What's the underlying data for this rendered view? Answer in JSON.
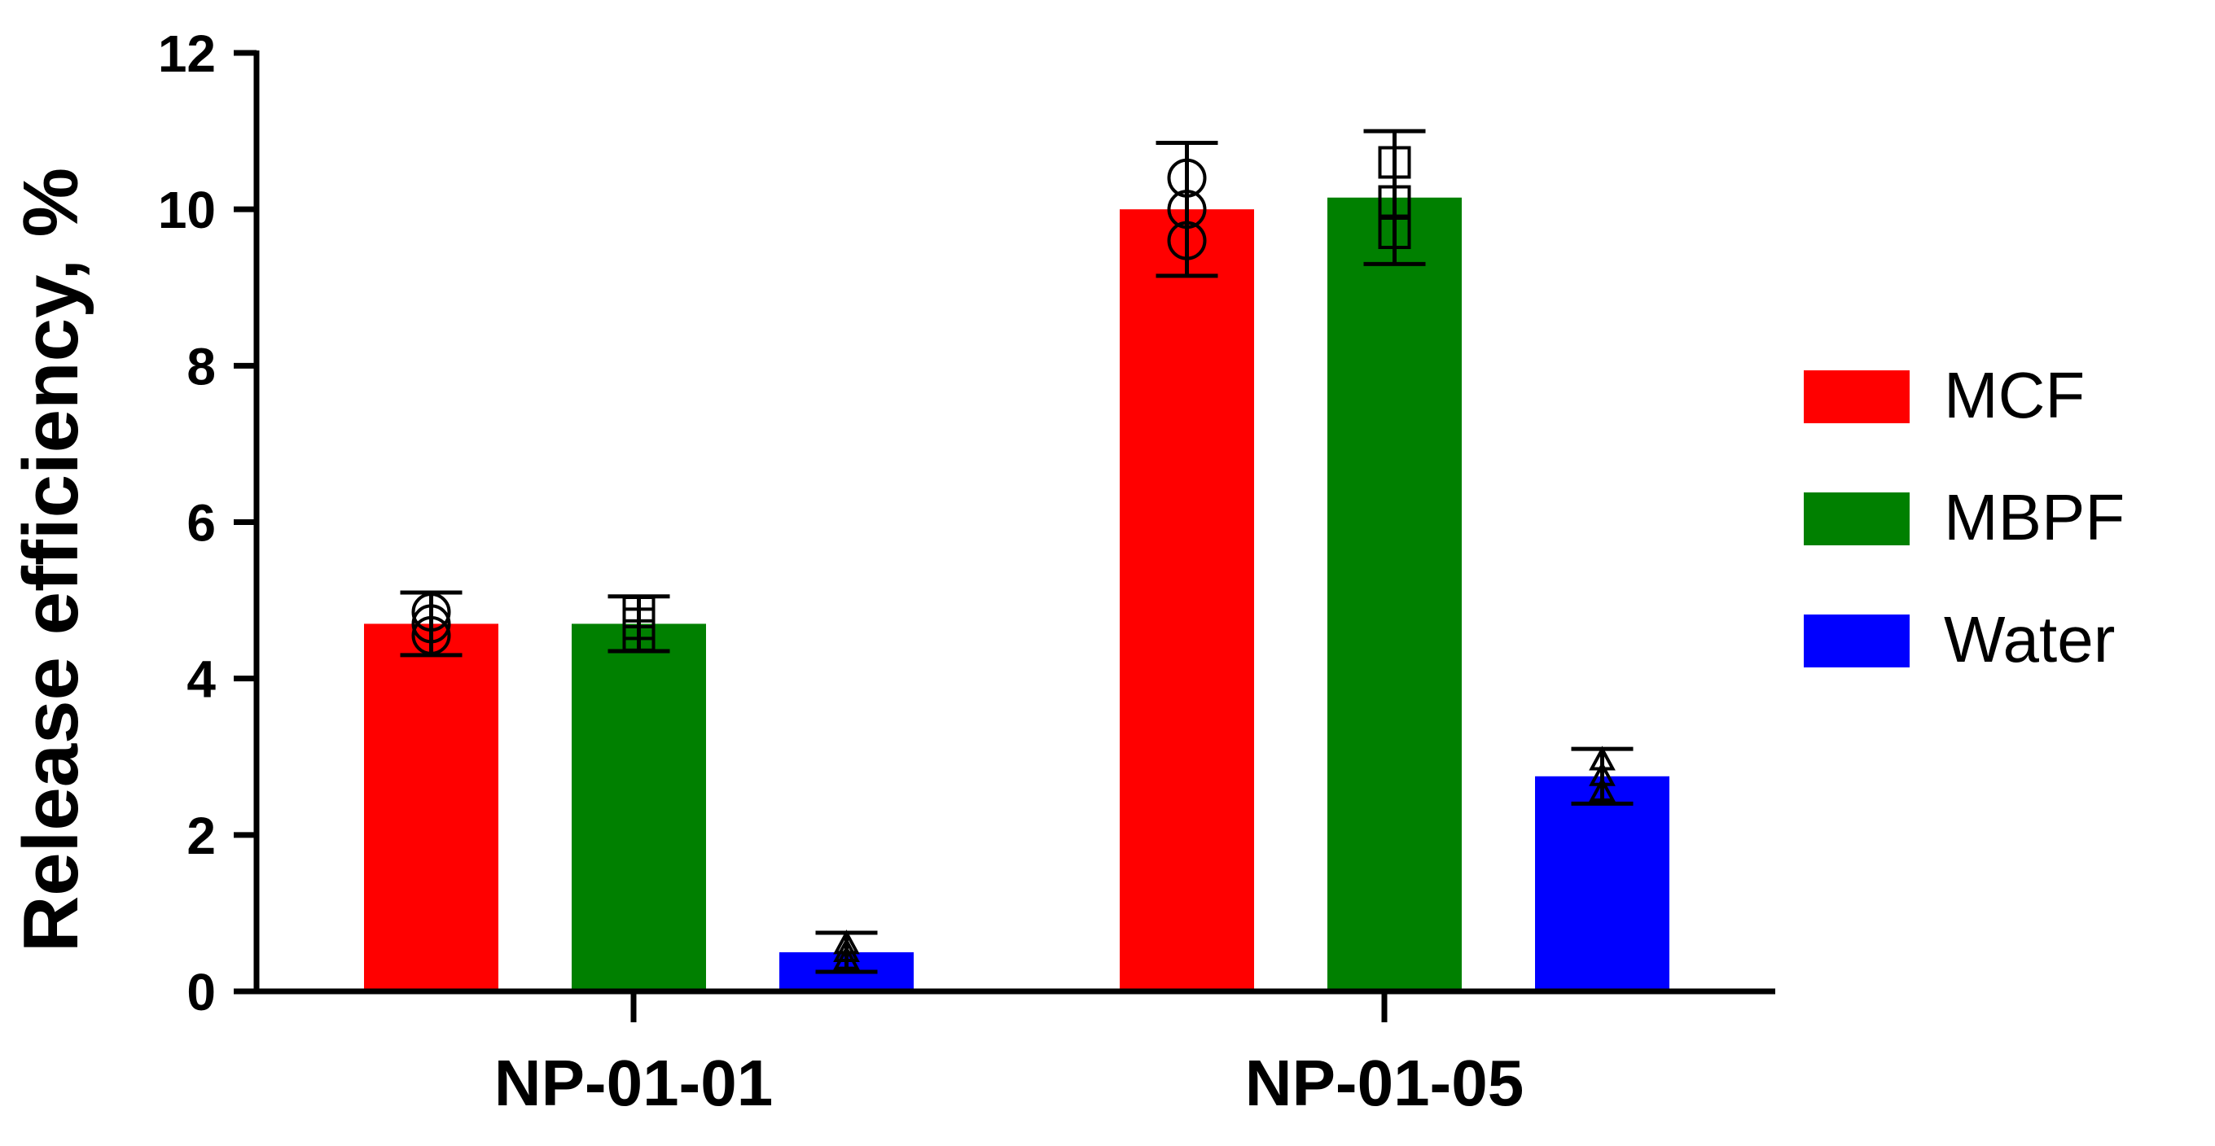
{
  "chart_data": {
    "type": "bar",
    "title": "",
    "xlabel": "",
    "ylabel": "Release efficiency, %",
    "ylim": [
      0,
      12
    ],
    "yticks": [
      0,
      2,
      4,
      6,
      8,
      10,
      12
    ],
    "categories": [
      "NP-01-01",
      "NP-01-05"
    ],
    "legend_position": "right",
    "series": [
      {
        "name": "MCF",
        "color": "#ff0000",
        "marker": "circle",
        "values": [
          4.7,
          10.0
        ],
        "error": [
          0.4,
          0.85
        ],
        "points": [
          [
            4.55,
            4.7,
            4.85
          ],
          [
            9.6,
            10.0,
            10.4
          ]
        ]
      },
      {
        "name": "MBPF",
        "color": "#008000",
        "marker": "square",
        "values": [
          4.7,
          10.15
        ],
        "error": [
          0.35,
          0.85
        ],
        "points": [
          [
            4.55,
            4.7,
            4.85
          ],
          [
            9.7,
            10.1,
            10.6
          ]
        ]
      },
      {
        "name": "Water",
        "color": "#0000ff",
        "marker": "triangle",
        "values": [
          0.5,
          2.75
        ],
        "error": [
          0.25,
          0.35
        ],
        "points": [
          [
            0.4,
            0.5,
            0.6
          ],
          [
            2.55,
            2.75,
            2.95
          ]
        ]
      }
    ]
  }
}
